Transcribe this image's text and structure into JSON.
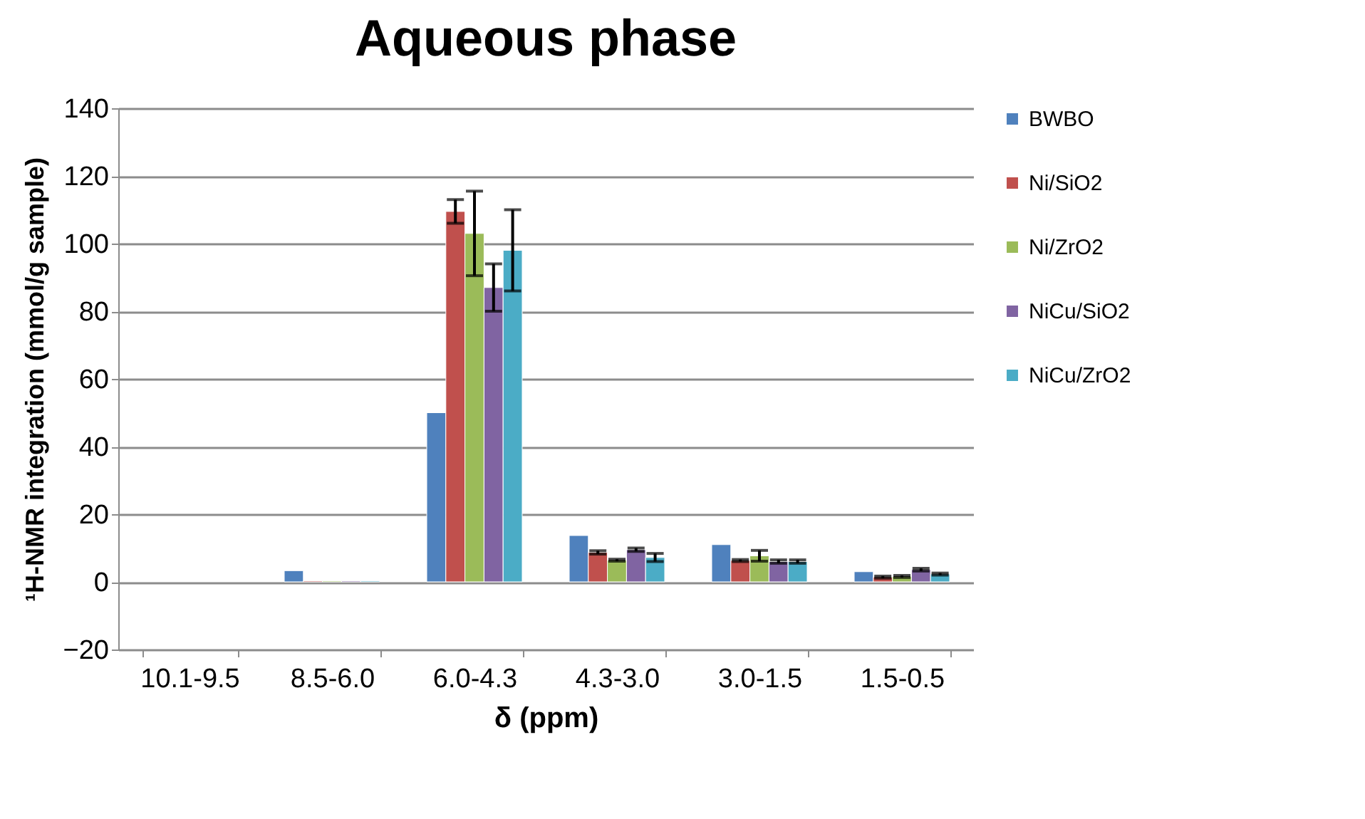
{
  "chart_data": {
    "type": "bar",
    "title": "Aqueous phase",
    "xlabel": "δ (ppm)",
    "ylabel": "¹H-NMR integration (mmol/g sample)",
    "categories": [
      "10.1-9.5",
      "8.5-6.0",
      "6.0-4.3",
      "4.3-3.0",
      "3.0-1.5",
      "1.5-0.5"
    ],
    "series": [
      {
        "name": "BWBO",
        "color": "#4f81bd",
        "values": [
          null,
          3.3,
          50,
          13.7,
          11,
          3
        ],
        "errors": [
          null,
          null,
          null,
          null,
          null,
          null
        ]
      },
      {
        "name": "Ni/SiO2",
        "color": "#c0504d",
        "values": [
          null,
          0.3,
          109.5,
          8.7,
          6.3,
          1.4
        ],
        "errors": [
          null,
          null,
          3.5,
          0.5,
          0.3,
          0.3
        ]
      },
      {
        "name": "Ni/ZrO2",
        "color": "#9bbb59",
        "values": [
          null,
          0.3,
          103,
          6.4,
          7.7,
          1.6
        ],
        "errors": [
          null,
          null,
          12.5,
          0.3,
          1.6,
          0.3
        ]
      },
      {
        "name": "NiCu/SiO2",
        "color": "#8064a2",
        "values": [
          null,
          0.3,
          87,
          9.5,
          6,
          3.6
        ],
        "errors": [
          null,
          null,
          7,
          0.5,
          0.5,
          0.4
        ]
      },
      {
        "name": "NiCu/ZrO2",
        "color": "#4bacc6",
        "values": [
          null,
          0.3,
          98,
          7.2,
          6,
          2.3
        ],
        "errors": [
          null,
          null,
          12,
          1.2,
          0.5,
          0.3
        ]
      }
    ],
    "ylim": [
      -20,
      140
    ],
    "yticks": [
      -20,
      0,
      20,
      40,
      60,
      80,
      100,
      120,
      140
    ],
    "grid": "y",
    "legend": "right"
  }
}
